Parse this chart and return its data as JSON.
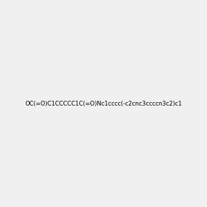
{
  "smiles": "OC(=O)C1CCCCC1C(=O)Nc1cccc(-c2cnc3ccccn3c2)c1",
  "img_size": [
    300,
    300
  ],
  "background_color": "#f0f0f0",
  "title": ""
}
